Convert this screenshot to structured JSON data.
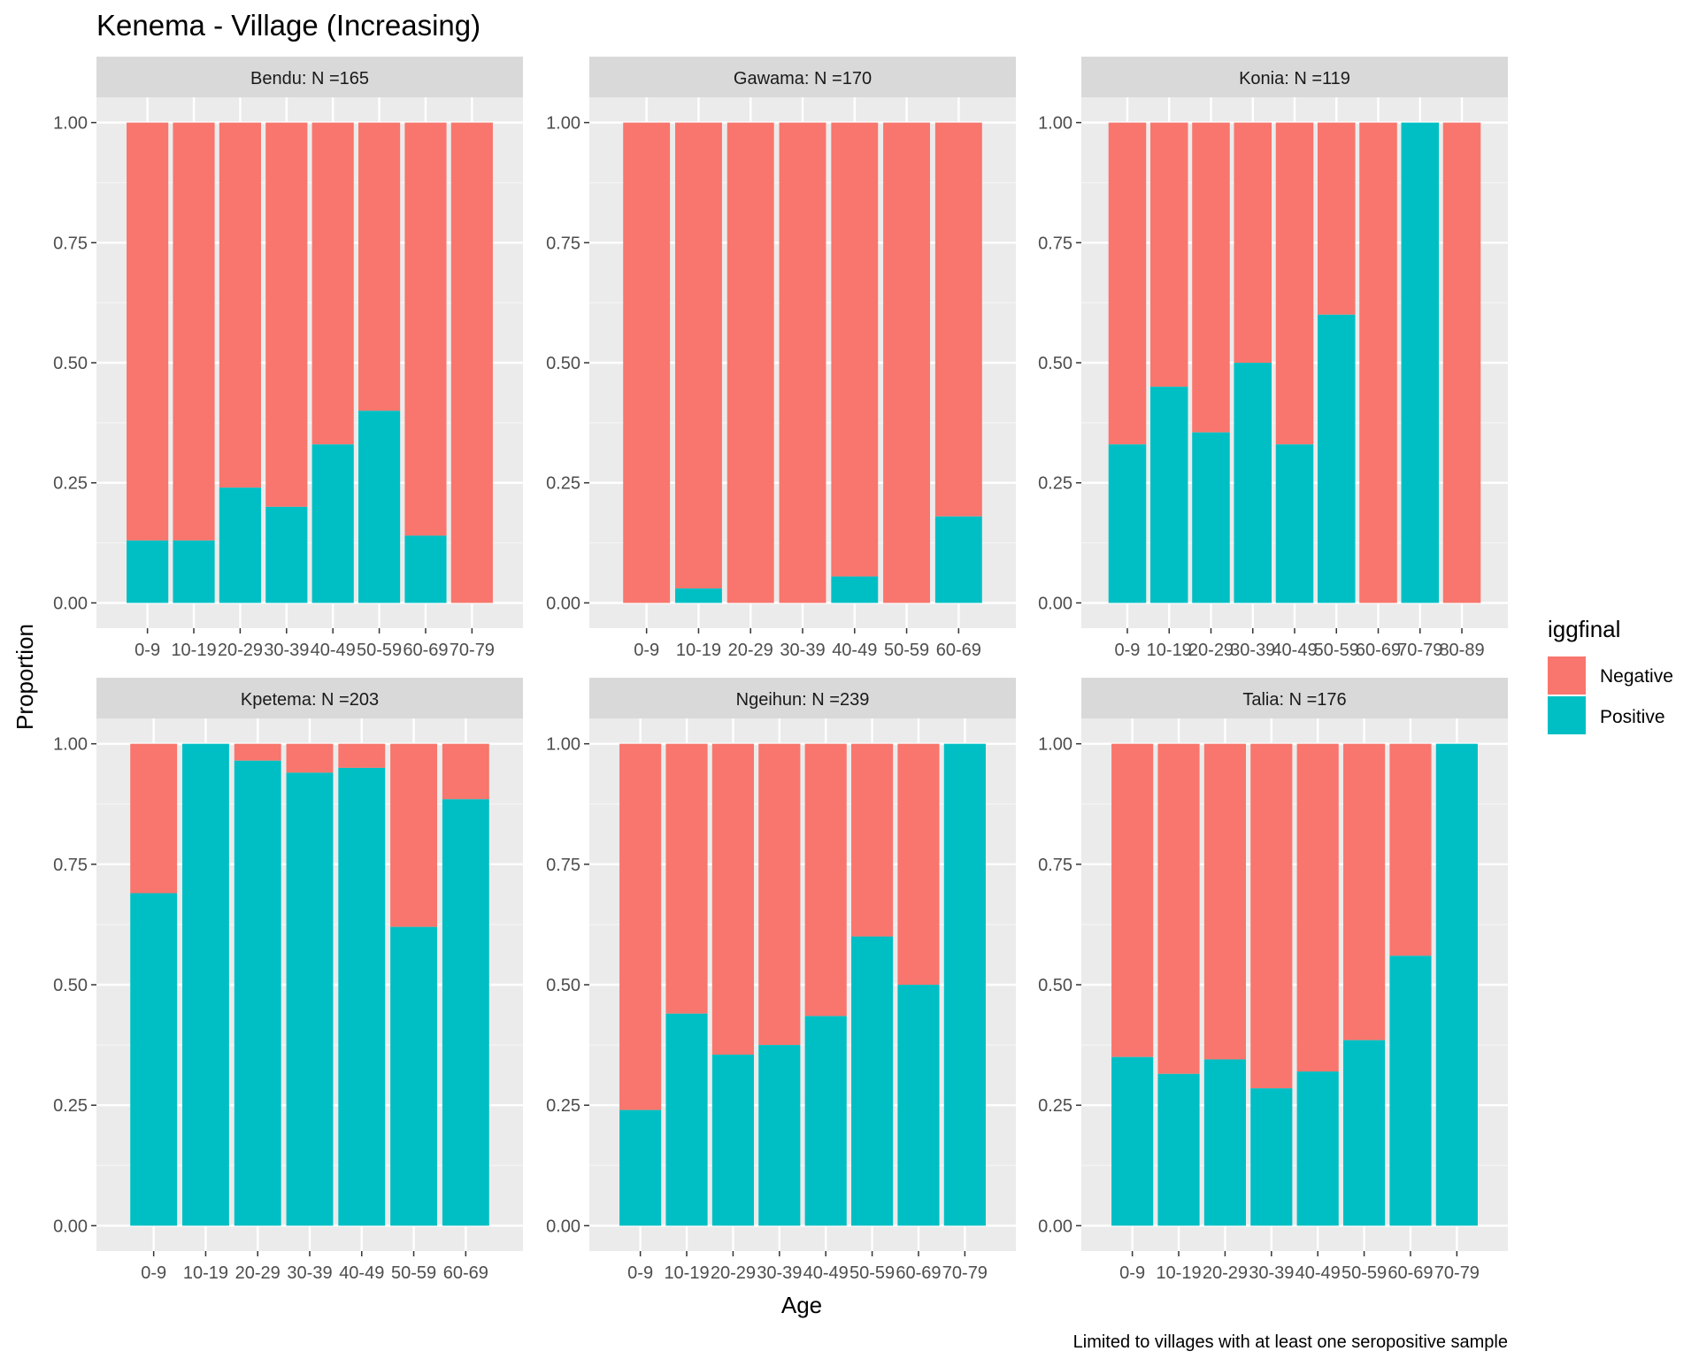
{
  "chart_data": {
    "type": "bar",
    "stacked": true,
    "title": "Kenema - Village (Increasing)",
    "xlabel": "Age",
    "ylabel": "Proportion",
    "caption": "Limited to villages with at least one seropositive sample",
    "ylim": [
      0,
      1
    ],
    "yticks": [
      "0.00",
      "0.25",
      "0.50",
      "0.75",
      "1.00"
    ],
    "grid": true,
    "legend": {
      "title": "iggfinal",
      "position": "right",
      "entries": [
        {
          "name": "Negative",
          "color": "#F8766D"
        },
        {
          "name": "Positive",
          "color": "#00BFC4"
        }
      ]
    },
    "panels": [
      {
        "title": "Bendu: N =165",
        "categories": [
          "0-9",
          "10-19",
          "20-29",
          "30-39",
          "40-49",
          "50-59",
          "60-69",
          "70-79"
        ],
        "positive": [
          0.13,
          0.13,
          0.24,
          0.2,
          0.33,
          0.4,
          0.14,
          0.0
        ]
      },
      {
        "title": "Gawama: N =170",
        "categories": [
          "0-9",
          "10-19",
          "20-29",
          "30-39",
          "40-49",
          "50-59",
          "60-69"
        ],
        "positive": [
          0.0,
          0.03,
          0.0,
          0.0,
          0.055,
          0.0,
          0.18
        ]
      },
      {
        "title": "Konia: N =119",
        "categories": [
          "0-9",
          "10-19",
          "20-29",
          "30-39",
          "40-49",
          "50-59",
          "60-69",
          "70-79",
          "80-89"
        ],
        "positive": [
          0.33,
          0.45,
          0.355,
          0.5,
          0.33,
          0.6,
          0.0,
          1.0,
          0.0
        ]
      },
      {
        "title": "Kpetema: N =203",
        "categories": [
          "0-9",
          "10-19",
          "20-29",
          "30-39",
          "40-49",
          "50-59",
          "60-69"
        ],
        "positive": [
          0.69,
          1.0,
          0.965,
          0.94,
          0.95,
          0.62,
          0.885
        ]
      },
      {
        "title": "Ngeihun: N =239",
        "categories": [
          "0-9",
          "10-19",
          "20-29",
          "30-39",
          "40-49",
          "50-59",
          "60-69",
          "70-79"
        ],
        "positive": [
          0.24,
          0.44,
          0.355,
          0.375,
          0.435,
          0.6,
          0.5,
          1.0
        ]
      },
      {
        "title": "Talia: N =176",
        "categories": [
          "0-9",
          "10-19",
          "20-29",
          "30-39",
          "40-49",
          "50-59",
          "60-69",
          "70-79"
        ],
        "positive": [
          0.35,
          0.315,
          0.345,
          0.285,
          0.32,
          0.385,
          0.56,
          1.0
        ]
      }
    ]
  }
}
